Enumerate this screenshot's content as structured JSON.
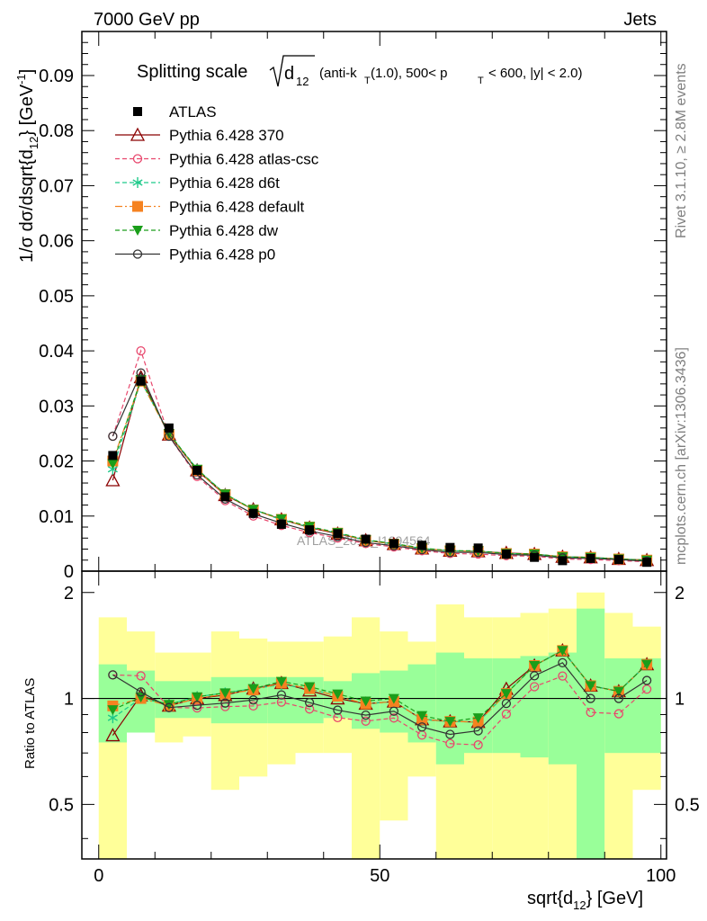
{
  "header": {
    "left": "7000 GeV pp",
    "right": "Jets"
  },
  "side": {
    "rivet": "Rivet 3.1.10, ≥ 2.8M events",
    "mcplots": "mcplots.cern.ch [arXiv:1306.3436]"
  },
  "title": {
    "main": "Splitting scale",
    "sym": "d",
    "sub": "12",
    "cut_a": "(anti-k",
    "cut_t": "T",
    "cut_b": "(1.0), 500< p",
    "cut_c": "T",
    "cut_d": "< 600, |y| < 2.0)"
  },
  "watermark": "ATLAS_2012_I1094564",
  "axes": {
    "ylabel_top": "1/σ dσ/dsqrt{d",
    "ylabel_sub": "12",
    "ylabel_mid": "} [GeV",
    "ylabel_sup": "-1",
    "ylabel_end": "]",
    "ylabel_bottom": "Ratio to ATLAS",
    "xlabel": "sqrt{d",
    "xlabel_sub": "12",
    "xlabel_end": "} [GeV]"
  },
  "chart_data": {
    "type": "line",
    "x": [
      2.5,
      7.5,
      12.5,
      17.5,
      22.5,
      27.5,
      32.5,
      37.5,
      42.5,
      47.5,
      52.5,
      57.5,
      62.5,
      67.5,
      72.5,
      77.5,
      82.5,
      87.5,
      92.5,
      97.5
    ],
    "xlim": [
      -3,
      101
    ],
    "top_ylim": [
      0,
      0.098
    ],
    "top_yticks": [
      0,
      0.01,
      0.02,
      0.03,
      0.04,
      0.05,
      0.06,
      0.07,
      0.08,
      0.09
    ],
    "top_ytick_labels": [
      "0",
      "0.01",
      "0.02",
      "0.03",
      "0.04",
      "0.05",
      "0.06",
      "0.07",
      "0.08",
      "0.09"
    ],
    "ratio_ylim": [
      0.35,
      2.3
    ],
    "ratio_yticks": [
      0.5,
      1,
      2
    ],
    "ratio_ytick_labels": [
      "0.5",
      "1",
      "2"
    ],
    "xticks": [
      0,
      50,
      100
    ],
    "xtick_labels": [
      "0",
      "50",
      "100"
    ],
    "data": {
      "name": "ATLAS",
      "values": [
        0.021,
        0.0345,
        0.026,
        0.0183,
        0.0135,
        0.0105,
        0.0085,
        0.0075,
        0.0068,
        0.0058,
        0.005,
        0.0047,
        0.0043,
        0.0042,
        0.0031,
        0.0025,
        0.0019,
        0.0023,
        0.0021,
        0.0016
      ]
    },
    "bands": {
      "inner": [
        0.25,
        0.2,
        0.12,
        0.12,
        0.15,
        0.15,
        0.15,
        0.15,
        0.12,
        0.18,
        0.2,
        0.25,
        0.35,
        0.3,
        0.3,
        0.32,
        0.35,
        0.8,
        0.3,
        0.3
      ],
      "outer_lo": [
        1.0,
        0.2,
        0.25,
        0.22,
        0.45,
        0.4,
        0.35,
        0.3,
        0.3,
        1.0,
        0.55,
        0.4,
        1.0,
        1.0,
        1.0,
        1.0,
        1.0,
        1.0,
        1.0,
        0.45
      ],
      "outer_hi": [
        0.7,
        0.55,
        0.35,
        0.35,
        0.55,
        0.48,
        0.45,
        0.45,
        0.5,
        0.7,
        0.55,
        0.45,
        0.85,
        0.7,
        0.7,
        0.75,
        0.8,
        1.0,
        0.75,
        0.6
      ]
    },
    "series": [
      {
        "name": "Pythia 6.428 370",
        "color": "#8b0000",
        "dash": "",
        "marker": "triangle-open",
        "values": [
          0.0165,
          0.0352,
          0.0248,
          0.0183,
          0.0138,
          0.0112,
          0.0094,
          0.0079,
          0.0068,
          0.0056,
          0.0049,
          0.0041,
          0.0037,
          0.0036,
          0.0033,
          0.0031,
          0.0026,
          0.0025,
          0.0022,
          0.002
        ]
      },
      {
        "name": "Pythia 6.428 atlas-csc",
        "color": "#e8476d",
        "dash": "5,3",
        "marker": "circle-open",
        "values": [
          0.0245,
          0.04,
          0.0245,
          0.0172,
          0.0128,
          0.01,
          0.0083,
          0.007,
          0.006,
          0.005,
          0.0044,
          0.0037,
          0.0032,
          0.0031,
          0.0028,
          0.0027,
          0.0022,
          0.0021,
          0.0019,
          0.0017
        ]
      },
      {
        "name": "Pythia 6.428 d6t",
        "color": "#1fc98a",
        "dash": "5,3",
        "marker": "asterisk",
        "values": [
          0.0185,
          0.0345,
          0.025,
          0.0185,
          0.014,
          0.0112,
          0.0093,
          0.008,
          0.0069,
          0.0056,
          0.0049,
          0.0041,
          0.0037,
          0.0036,
          0.0032,
          0.0031,
          0.0026,
          0.0025,
          0.0022,
          0.002
        ]
      },
      {
        "name": "Pythia 6.428 default",
        "color": "#f58220",
        "dash": "8,3,2,3",
        "marker": "square",
        "values": [
          0.02,
          0.0345,
          0.0248,
          0.0183,
          0.0139,
          0.0111,
          0.0094,
          0.008,
          0.0069,
          0.0056,
          0.0049,
          0.0041,
          0.0037,
          0.0036,
          0.0032,
          0.0031,
          0.0026,
          0.0025,
          0.0022,
          0.002
        ]
      },
      {
        "name": "Pythia 6.428 dw",
        "color": "#1a9e1a",
        "dash": "5,3",
        "marker": "triangle-down",
        "values": [
          0.0195,
          0.0348,
          0.025,
          0.0185,
          0.014,
          0.0112,
          0.0095,
          0.0081,
          0.007,
          0.0057,
          0.005,
          0.0042,
          0.0037,
          0.0037,
          0.0032,
          0.0031,
          0.0026,
          0.0025,
          0.0022,
          0.002
        ]
      },
      {
        "name": "Pythia 6.428 p0",
        "color": "#333333",
        "dash": "",
        "marker": "circle-open",
        "values": [
          0.0245,
          0.036,
          0.0245,
          0.0175,
          0.0131,
          0.0104,
          0.0087,
          0.0073,
          0.0063,
          0.0052,
          0.0046,
          0.0039,
          0.0034,
          0.0034,
          0.003,
          0.0029,
          0.0024,
          0.0023,
          0.0021,
          0.0018
        ]
      }
    ]
  }
}
